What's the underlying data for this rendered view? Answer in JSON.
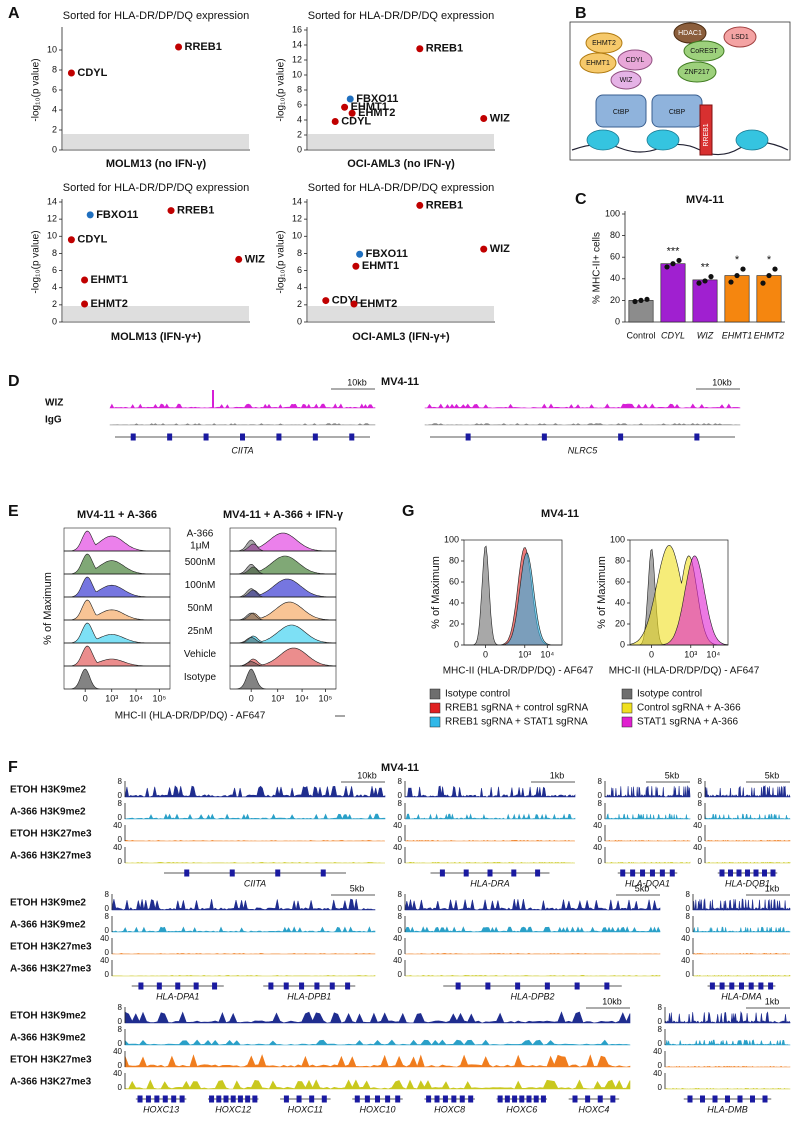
{
  "panel_labels": [
    "A",
    "B",
    "C",
    "D",
    "E",
    "F",
    "G"
  ],
  "chart_data": [
    {
      "type": "scatter",
      "title": "Sorted for HLA-DR/DP/DQ expression",
      "x_label": "MOLM13 (no IFN-γ)",
      "y_label": "-log₁₀(p value)",
      "xlim": [
        0,
        100
      ],
      "ylim": [
        0,
        12
      ],
      "yticks": [
        0,
        2,
        4,
        6,
        8,
        10
      ],
      "points": {
        "labels": [
          "CDYL",
          "RREB1"
        ],
        "x": [
          5,
          62
        ],
        "values": [
          7.7,
          10.3
        ],
        "colors": [
          "#c00000",
          "#c00000"
        ]
      }
    },
    {
      "type": "scatter",
      "title": "Sorted for HLA-DR/DP/DQ expression",
      "x_label": "OCI-AML3 (no IFN-γ)",
      "y_label": "-log₁₀(p value)",
      "xlim": [
        0,
        100
      ],
      "ylim": [
        0,
        16
      ],
      "yticks": [
        0,
        2,
        4,
        6,
        8,
        10,
        12,
        14,
        16
      ],
      "points": {
        "labels": [
          "RREB1",
          "FBXO11",
          "EHMT1",
          "EHMT2",
          "CDYL",
          "WIZ"
        ],
        "x": [
          60,
          23,
          20,
          24,
          15,
          94
        ],
        "values": [
          13.5,
          6.8,
          5.7,
          4.9,
          3.8,
          4.2
        ],
        "colors": [
          "#c00000",
          "#1f6fbf",
          "#c00000",
          "#c00000",
          "#c00000",
          "#c00000"
        ]
      }
    },
    {
      "type": "scatter",
      "title": "Sorted for HLA-DR/DP/DQ expression",
      "x_label": "MOLM13 (IFN-γ+)",
      "y_label": "-log₁₀(p value)",
      "xlim": [
        0,
        100
      ],
      "ylim": [
        0,
        14
      ],
      "yticks": [
        0,
        2,
        4,
        6,
        8,
        10,
        12,
        14
      ],
      "points": {
        "labels": [
          "FBXO11",
          "RREB1",
          "CDYL",
          "WIZ",
          "EHMT1",
          "EHMT2"
        ],
        "x": [
          15,
          58,
          5,
          94,
          12,
          12
        ],
        "values": [
          12.5,
          13,
          9.6,
          7.3,
          4.9,
          2.1
        ],
        "colors": [
          "#1f6fbf",
          "#c00000",
          "#c00000",
          "#c00000",
          "#c00000",
          "#c00000"
        ]
      }
    },
    {
      "type": "scatter",
      "title": "Sorted for HLA-DR/DP/DQ expression",
      "x_label": "OCI-AML3 (IFN-γ+)",
      "y_label": "-log₁₀(p value)",
      "xlim": [
        0,
        100
      ],
      "ylim": [
        0,
        14
      ],
      "yticks": [
        0,
        2,
        4,
        6,
        8,
        10,
        12,
        14
      ],
      "points": {
        "labels": [
          "RREB1",
          "WIZ",
          "FBXO11",
          "EHMT1",
          "CDYL",
          "EHMT2"
        ],
        "x": [
          60,
          94,
          28,
          26,
          10,
          25
        ],
        "values": [
          13.6,
          8.5,
          7.9,
          6.5,
          2.5,
          2.1
        ],
        "colors": [
          "#c00000",
          "#c00000",
          "#1f6fbf",
          "#c00000",
          "#c00000",
          "#c00000"
        ]
      }
    },
    {
      "type": "bar",
      "title": "MV4-11",
      "y_label": "% MHC-II+ cells",
      "categories": [
        "Control",
        "CDYL",
        "WIZ",
        "EHMT1",
        "EHMT2"
      ],
      "values": [
        20,
        54,
        39,
        43,
        43
      ],
      "colors": [
        "#8c8c8c",
        "#a020d0",
        "#a020d0",
        "#f5860f",
        "#f5860f"
      ],
      "replicates": [
        [
          19,
          20,
          21
        ],
        [
          51,
          54,
          57
        ],
        [
          36,
          38,
          42
        ],
        [
          37,
          43,
          49
        ],
        [
          36,
          43,
          49
        ]
      ],
      "annotations": [
        null,
        "***",
        "**",
        "*",
        "*"
      ],
      "ylim": [
        0,
        100
      ],
      "yticks": [
        0,
        20,
        40,
        60,
        80,
        100
      ]
    }
  ],
  "diagram": {
    "nodes": [
      "EHMT2",
      "EHMT1",
      "CDYL",
      "WIZ",
      "HDAC1",
      "LSD1",
      "CoREST",
      "ZNF217",
      "CtBP",
      "CtBP",
      "RREB1"
    ]
  },
  "panel_d": {
    "title": "MV4-11",
    "tracks": [
      {
        "name": "WIZ",
        "color": "#d61fd6"
      },
      {
        "name": "IgG",
        "color": "#888888"
      }
    ],
    "loci": [
      {
        "gene": "CIITA",
        "scale": "10kb"
      },
      {
        "gene": "NLRC5",
        "scale": "10kb"
      }
    ]
  },
  "panel_e": {
    "titles": [
      "MV4-11 + A-366",
      "MV4-11 + A-366 + IFN-γ"
    ],
    "drug_label": "A-366",
    "row_labels": [
      "1μM",
      "500nM",
      "100nM",
      "50nM",
      "25nM",
      "Vehicle",
      "Isotype"
    ],
    "row_colors": [
      "#e03ce0",
      "#3c7a2c",
      "#2c2cd0",
      "#f5a45c",
      "#38d0f0",
      "#e05050",
      "#404040"
    ],
    "y_label": "% of Maximum",
    "x_label": "MHC-II (HLA-DR/DP/DQ) - AF647",
    "x_ticks": [
      "0",
      "10³",
      "10⁴",
      "10⁵"
    ]
  },
  "panel_g": {
    "title": "MV4-11",
    "y_label": "% of Maximum",
    "x_label": "MHC-II (HLA-DR/DP/DQ) - AF647",
    "ylim": [
      0,
      100
    ],
    "yticks": [
      0,
      20,
      40,
      60,
      80,
      100
    ],
    "x_ticks": [
      "0",
      "10³",
      "10⁴"
    ],
    "legends": [
      [
        {
          "name": "Isotype control",
          "color": "#6e6e6e"
        },
        {
          "name": "RREB1 sgRNA + control sgRNA",
          "color": "#e02020"
        },
        {
          "name": "RREB1 sgRNA + STAT1 sgRNA",
          "color": "#30b8e8"
        }
      ],
      [
        {
          "name": "Isotype control",
          "color": "#6e6e6e"
        },
        {
          "name": "Control sgRNA + A-366",
          "color": "#f0e020"
        },
        {
          "name": "STAT1 sgRNA + A-366",
          "color": "#e020d0"
        }
      ]
    ]
  },
  "panel_f": {
    "title": "MV4-11",
    "tracks": [
      {
        "name": "ETOH H3K9me2",
        "color": "#1f2d8f",
        "ylim": [
          0,
          8
        ]
      },
      {
        "name": "A-366 H3K9me2",
        "color": "#2aa0c8",
        "ylim": [
          0,
          8
        ]
      },
      {
        "name": "ETOH H3K27me3",
        "color": "#f07d1e",
        "ylim": [
          0,
          40
        ]
      },
      {
        "name": "A-366 H3K27me3",
        "color": "#c9c81e",
        "ylim": [
          0,
          40
        ]
      }
    ],
    "rows": [
      {
        "loci": [
          {
            "genes": [
              "CIITA"
            ],
            "scale": "10kb"
          },
          {
            "genes": [
              "HLA-DRA"
            ],
            "scale": "1kb"
          },
          {
            "genes": [
              "HLA-DQA1"
            ],
            "scale": "5kb"
          },
          {
            "genes": [
              "HLA-DQB1"
            ],
            "scale": "5kb"
          }
        ]
      },
      {
        "loci": [
          {
            "genes": [
              "HLA-DPA1",
              "HLA-DPB1"
            ],
            "scale": "5kb"
          },
          {
            "genes": [
              "HLA-DPB2"
            ],
            "scale": "5kb"
          },
          {
            "genes": [
              "HLA-DMA"
            ],
            "scale": "1kb"
          }
        ]
      },
      {
        "loci": [
          {
            "genes": [
              "HOXC13",
              "HOXC12",
              "HOXC11",
              "HOXC10",
              "HOXC8",
              "HOXC6",
              "HOXC4"
            ],
            "scale": "10kb"
          },
          {
            "genes": [
              "HLA-DMB"
            ],
            "scale": "1kb"
          }
        ]
      }
    ]
  }
}
